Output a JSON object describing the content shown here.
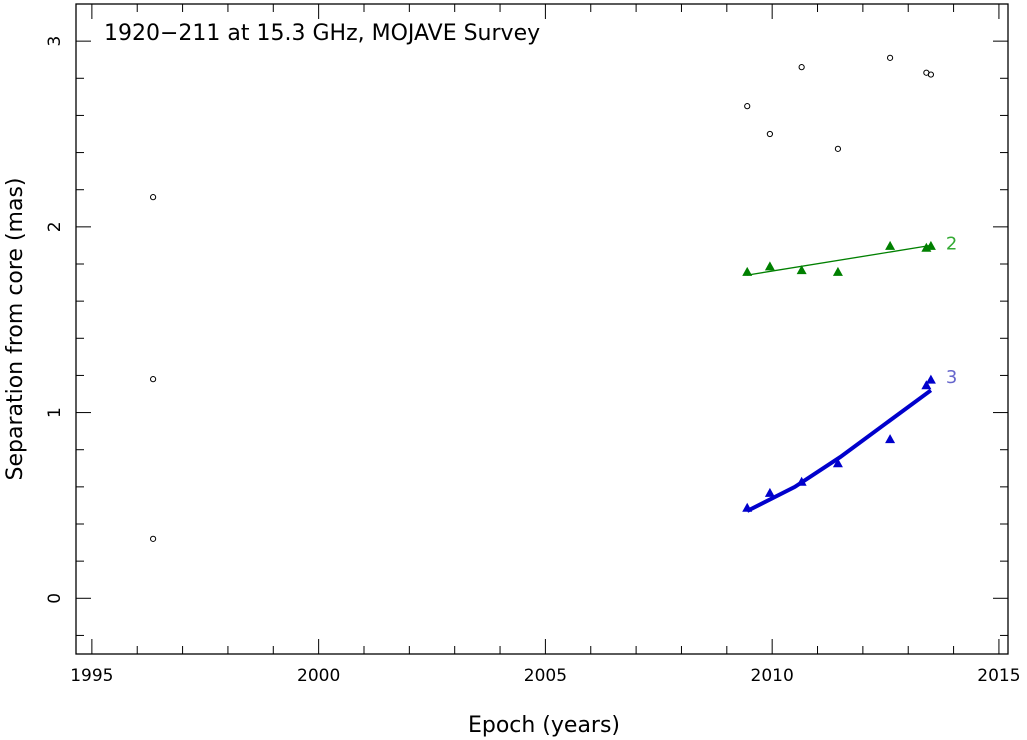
{
  "chart_data": {
    "type": "scatter",
    "title": "1920−211 at 15.3 GHz, MOJAVE Survey",
    "xlabel": "Epoch (years)",
    "ylabel": "Separation from core (mas)",
    "xlim": [
      1994.65,
      2015.2
    ],
    "ylim": [
      -0.3,
      3.2
    ],
    "xticks": [
      1995,
      2000,
      2005,
      2010,
      2015
    ],
    "yticks": [
      0,
      1,
      2,
      3
    ],
    "grid": false,
    "series": [
      {
        "marker": "open-circle",
        "color": "#000000",
        "points": [
          [
            1996.35,
            2.16
          ],
          [
            1996.35,
            1.18
          ],
          [
            1996.35,
            0.32
          ],
          [
            2009.45,
            2.65
          ],
          [
            2009.95,
            2.5
          ],
          [
            2010.65,
            2.86
          ],
          [
            2011.45,
            2.42
          ],
          [
            2012.6,
            2.91
          ],
          [
            2013.4,
            2.83
          ],
          [
            2013.5,
            2.82
          ]
        ]
      },
      {
        "name": "2",
        "marker": "filled-triangle",
        "color": "#008000",
        "label_color": "#33aa33",
        "points": [
          [
            2009.45,
            1.76
          ],
          [
            2009.95,
            1.79
          ],
          [
            2010.65,
            1.77
          ],
          [
            2011.45,
            1.76
          ],
          [
            2012.6,
            1.9
          ],
          [
            2013.4,
            1.89
          ],
          [
            2013.5,
            1.9
          ]
        ],
        "fit": {
          "style": "linear",
          "width": 1.3,
          "points": [
            [
              2009.45,
              1.74
            ],
            [
              2013.5,
              1.9
            ]
          ]
        }
      },
      {
        "name": "3",
        "marker": "filled-triangle",
        "color": "#0000cc",
        "label_color": "#6666cc",
        "points": [
          [
            2009.45,
            0.49
          ],
          [
            2009.95,
            0.57
          ],
          [
            2010.65,
            0.63
          ],
          [
            2011.45,
            0.73
          ],
          [
            2012.6,
            0.86
          ],
          [
            2013.4,
            1.15
          ],
          [
            2013.5,
            1.18
          ]
        ],
        "fit": {
          "style": "curve",
          "width": 4,
          "points": [
            [
              2009.45,
              0.47
            ],
            [
              2010.5,
              0.6
            ],
            [
              2011.5,
              0.76
            ],
            [
              2012.5,
              0.94
            ],
            [
              2013.5,
              1.12
            ]
          ]
        }
      }
    ]
  }
}
